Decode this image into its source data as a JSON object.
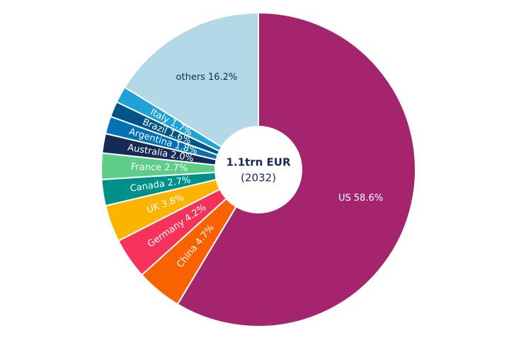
{
  "chart_data": {
    "type": "donut",
    "center_title": "1.1trn EUR",
    "center_subtitle": "(2032)",
    "categories": [
      "US",
      "China",
      "Germany",
      "UK",
      "Canada",
      "France",
      "Australia",
      "Argentina",
      "Brazil",
      "Italy",
      "others"
    ],
    "values": [
      58.6,
      4.7,
      4.2,
      3.8,
      2.7,
      2.7,
      2.0,
      1.8,
      1.6,
      1.7,
      16.2
    ],
    "value_labels": [
      "58.6%",
      "4.7%",
      "4.2%",
      "3.8%",
      "2.7%",
      "2.7%",
      "2.0%",
      "1.8%",
      "1.6%",
      "1.7%",
      "16.2%"
    ],
    "colors": [
      "#a4256e",
      "#f86200",
      "#f5325a",
      "#fbb500",
      "#00908a",
      "#5dcd87",
      "#152b55",
      "#0072b5",
      "#005587",
      "#1fa3d7",
      "#b4d9e6"
    ]
  }
}
